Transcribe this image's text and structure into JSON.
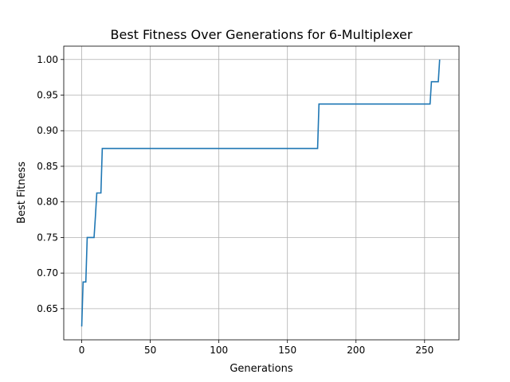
{
  "chart_data": {
    "type": "line",
    "title": "Best Fitness Over Generations for 6-Multiplexer",
    "xlabel": "Generations",
    "ylabel": "Best Fitness",
    "xlim": [
      -13.1,
      275.1
    ],
    "ylim": [
      0.60625,
      1.01875
    ],
    "xticks": [
      0,
      50,
      100,
      150,
      200,
      250
    ],
    "yticks": [
      0.65,
      0.7,
      0.75,
      0.8,
      0.85,
      0.9,
      0.95,
      1.0
    ],
    "grid": true,
    "color": "#1f77b4",
    "series": [
      {
        "x": [
          0,
          1,
          1,
          3,
          4,
          9,
          10,
          11,
          13,
          14,
          15,
          172,
          173,
          254,
          255,
          260,
          261
        ],
        "y": [
          0.625,
          0.6875,
          0.6875,
          0.6875,
          0.75,
          0.75,
          0.78,
          0.8125,
          0.8125,
          0.8125,
          0.875,
          0.875,
          0.9375,
          0.9375,
          0.96875,
          0.96875,
          1.0
        ]
      }
    ]
  }
}
